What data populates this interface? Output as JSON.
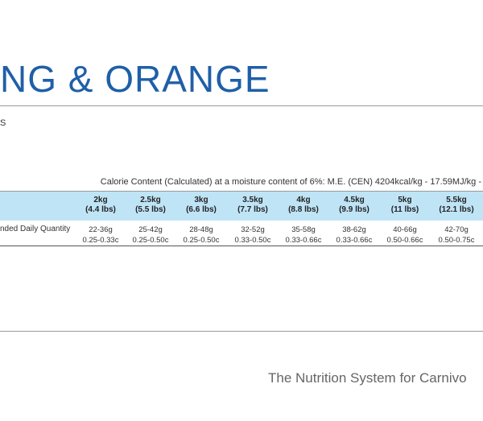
{
  "title": "NG & ORANGE",
  "subtitle_fragment": "S",
  "calorie_text": "Calorie Content (Calculated) at a moisture content of 6%: M.E. (CEN) 4204kcal/kg - 17.59MJ/kg -",
  "table": {
    "columns": [
      {
        "kg": "2kg",
        "lbs": "(4.4 lbs)"
      },
      {
        "kg": "2.5kg",
        "lbs": "(5.5 lbs)"
      },
      {
        "kg": "3kg",
        "lbs": "(6.6 lbs)"
      },
      {
        "kg": "3.5kg",
        "lbs": "(7.7 lbs)"
      },
      {
        "kg": "4kg",
        "lbs": "(8.8 lbs)"
      },
      {
        "kg": "4.5kg",
        "lbs": "(9.9 lbs)"
      },
      {
        "kg": "5kg",
        "lbs": "(11 lbs)"
      },
      {
        "kg": "5.5kg",
        "lbs": "(12.1 lbs)"
      }
    ],
    "row_label": "nded Daily Quantity",
    "values": [
      {
        "grams": "22-36g",
        "cups": "0.25-0.33c"
      },
      {
        "grams": "25-42g",
        "cups": "0.25-0.50c"
      },
      {
        "grams": "28-48g",
        "cups": "0.25-0.50c"
      },
      {
        "grams": "32-52g",
        "cups": "0.33-0.50c"
      },
      {
        "grams": "35-58g",
        "cups": "0.33-0.66c"
      },
      {
        "grams": "38-62g",
        "cups": "0.33-0.66c"
      },
      {
        "grams": "40-66g",
        "cups": "0.50-0.66c"
      },
      {
        "grams": "42-70g",
        "cups": "0.50-0.75c"
      }
    ]
  },
  "tagline": "The Nutrition System for Carnivo",
  "colors": {
    "title": "#1f5fa8",
    "header_band": "#bfe4f6"
  }
}
